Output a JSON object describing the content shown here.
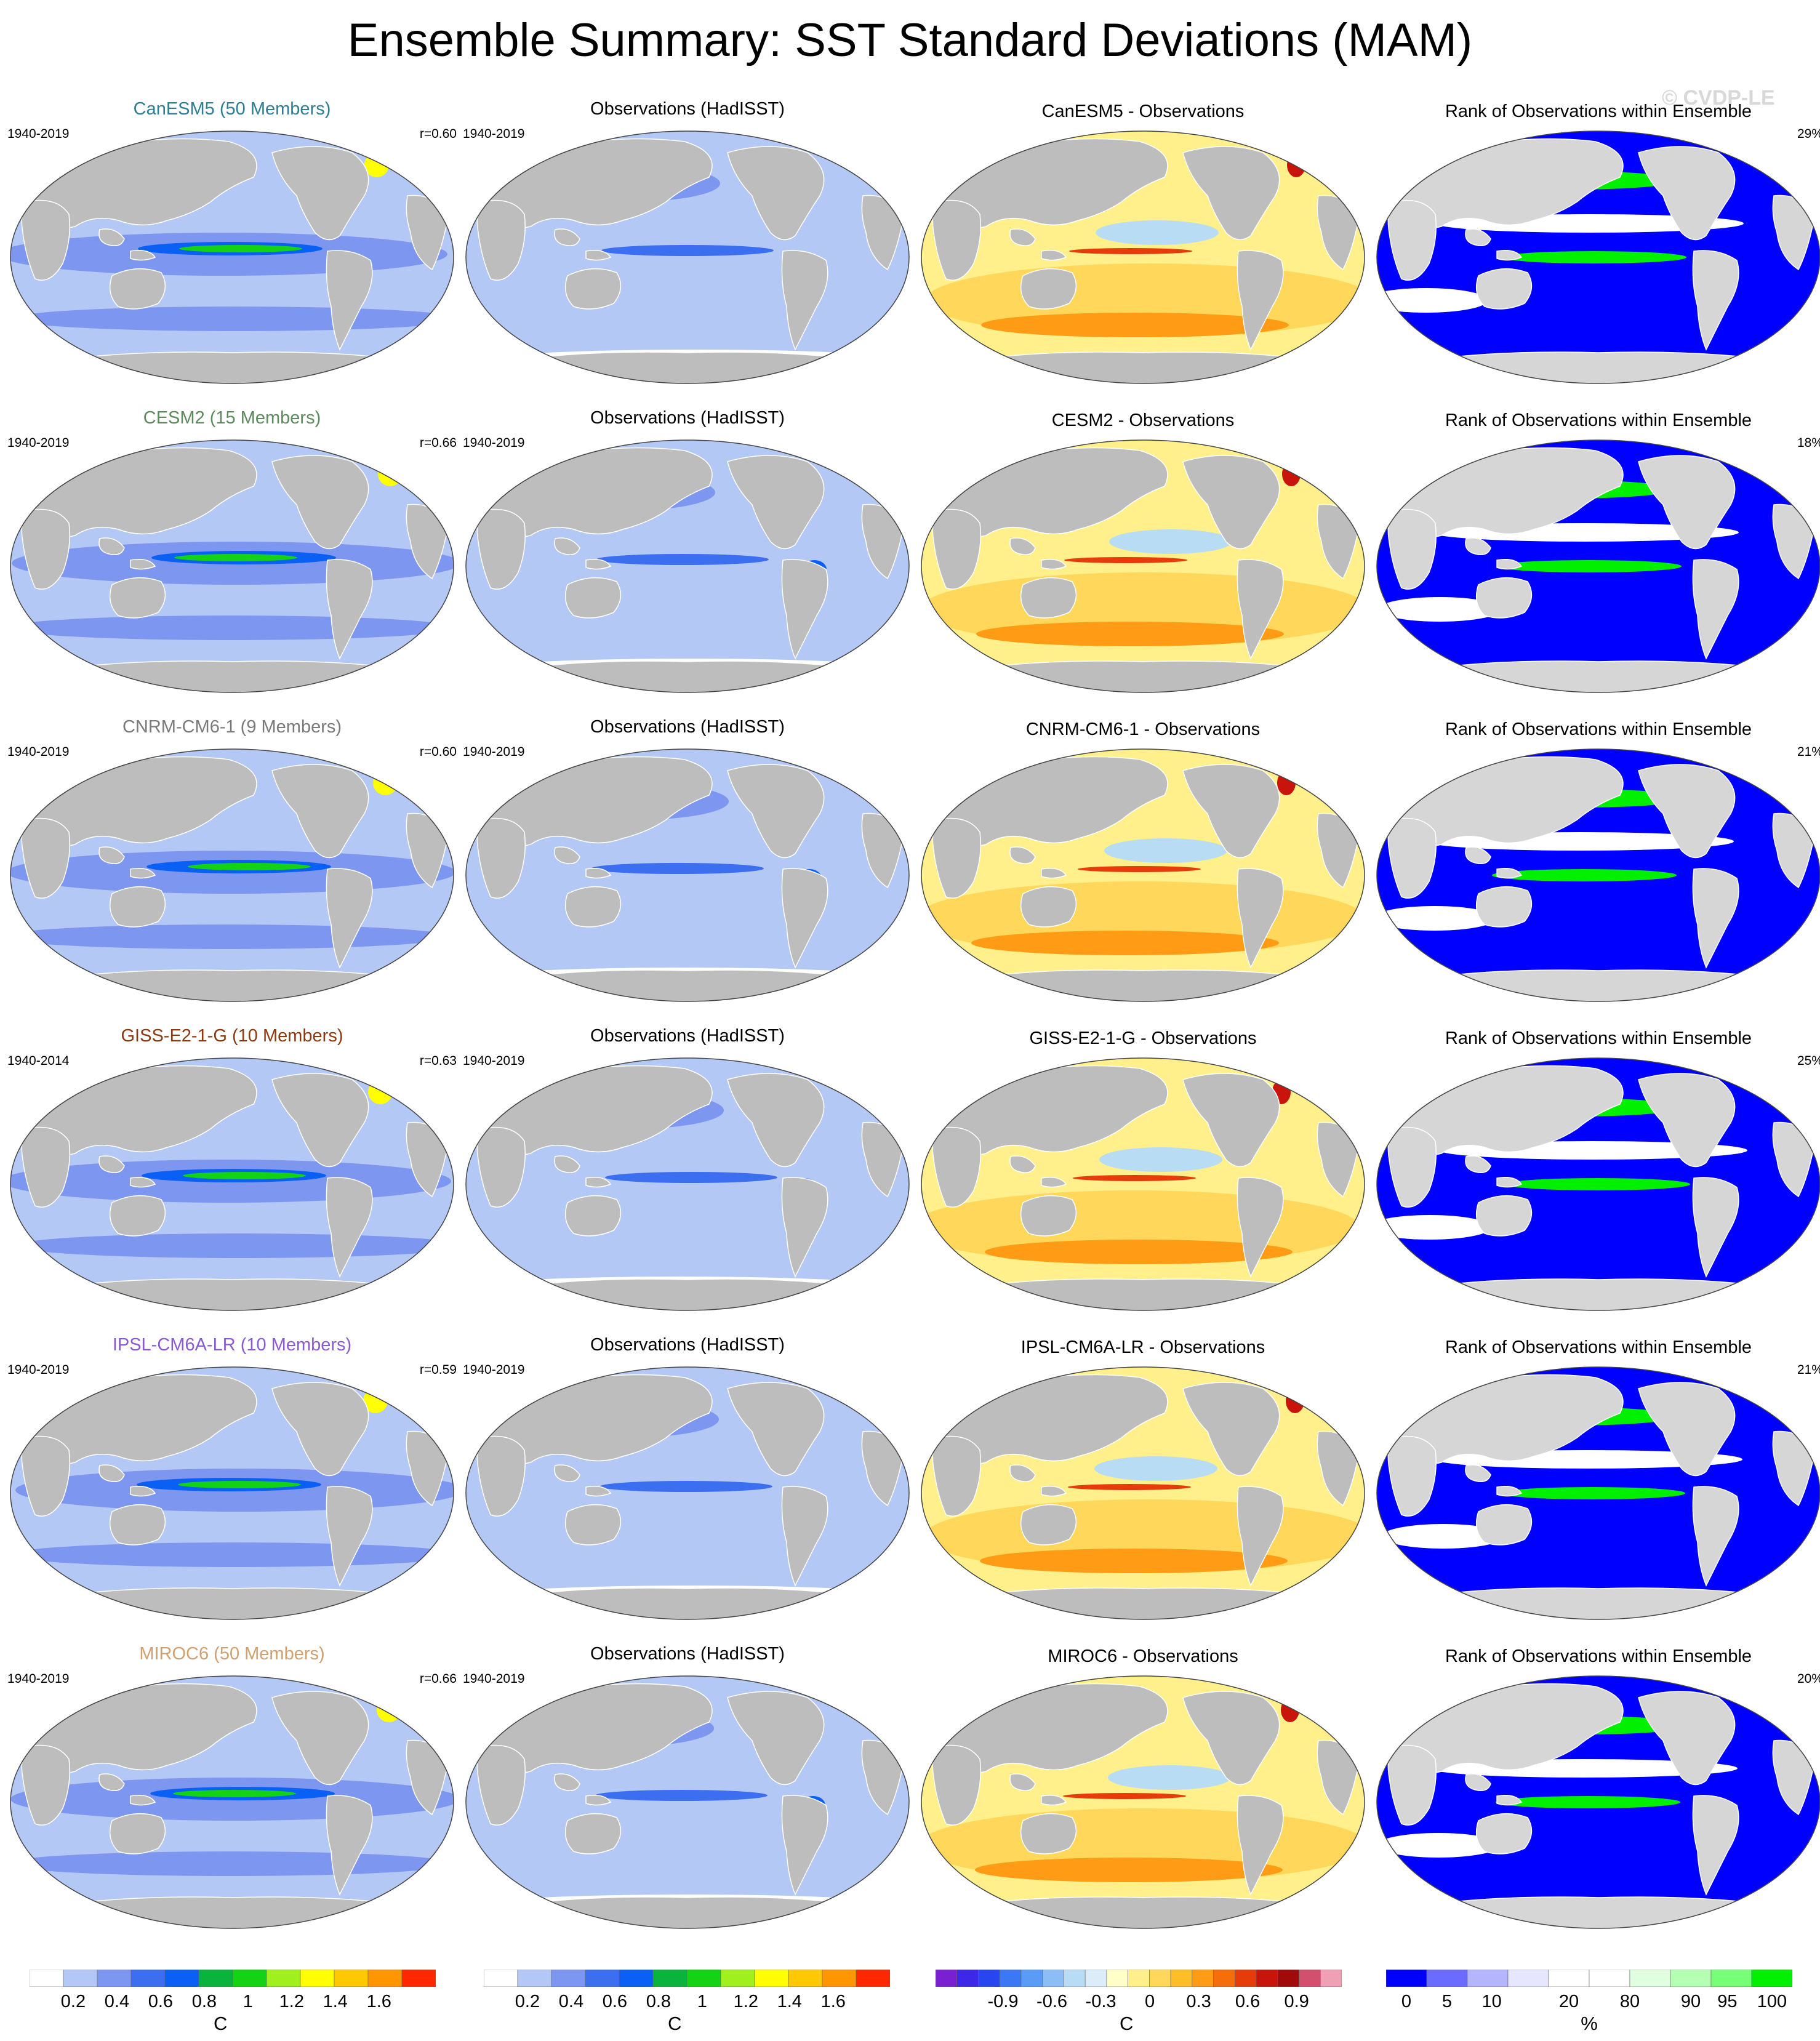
{
  "title": "Ensemble Summary: SST Standard Deviations (MAM)",
  "watermark": "© CVDP-LE",
  "obs_title": "Observations (HadISST)",
  "rank_title": "Rank of Observations within Ensemble",
  "rows": [
    {
      "model": "CanESM5 (50 Members)",
      "diff_title": "CanESM5 - Observations",
      "model_period": "1940-2019",
      "obs_period": "1940-2019",
      "r": "r=0.60",
      "rank_pct": "29%",
      "title_color": "#2e7d92"
    },
    {
      "model": "CESM2 (15 Members)",
      "diff_title": "CESM2 - Observations",
      "model_period": "1940-2019",
      "obs_period": "1940-2019",
      "r": "r=0.66",
      "rank_pct": "18%",
      "title_color": "#5c8a5c"
    },
    {
      "model": "CNRM-CM6-1 (9 Members)",
      "diff_title": "CNRM-CM6-1 - Observations",
      "model_period": "1940-2019",
      "obs_period": "1940-2019",
      "r": "r=0.60",
      "rank_pct": "21%",
      "title_color": "#7a7a7a"
    },
    {
      "model": "GISS-E2-1-G (10 Members)",
      "diff_title": "GISS-E2-1-G - Observations",
      "model_period": "1940-2014",
      "obs_period": "1940-2019",
      "r": "r=0.63",
      "rank_pct": "25%",
      "title_color": "#8b3a0f"
    },
    {
      "model": "IPSL-CM6A-LR (10 Members)",
      "diff_title": "IPSL-CM6A-LR - Observations",
      "model_period": "1940-2019",
      "obs_period": "1940-2019",
      "r": "r=0.59",
      "rank_pct": "21%",
      "title_color": "#8a5ad2"
    },
    {
      "model": "MIROC6 (50 Members)",
      "diff_title": "MIROC6 - Observations",
      "model_period": "1940-2019",
      "obs_period": "1940-2019",
      "r": "r=0.66",
      "rank_pct": "20%",
      "title_color": "#d0a070"
    }
  ],
  "colorbars": [
    {
      "unit": "C",
      "colors": [
        "#ffffff",
        "#b4c8f5",
        "#7d96f0",
        "#3c6ef0",
        "#0a5ff5",
        "#0ab43c",
        "#14d214",
        "#a0f01e",
        "#ffff00",
        "#ffc800",
        "#ff9600",
        "#ff2800"
      ],
      "ticks": [
        "0.2",
        "0.4",
        "0.6",
        "0.8",
        "1",
        "1.2",
        "1.4",
        "1.6"
      ]
    },
    {
      "unit": "C",
      "colors": [
        "#ffffff",
        "#b4c8f5",
        "#7d96f0",
        "#3c6ef0",
        "#0a5ff5",
        "#0ab43c",
        "#14d214",
        "#a0f01e",
        "#ffff00",
        "#ffc800",
        "#ff9600",
        "#ff2800"
      ],
      "ticks": [
        "0.2",
        "0.4",
        "0.6",
        "0.8",
        "1",
        "1.2",
        "1.4",
        "1.6"
      ]
    },
    {
      "unit": "C",
      "colors": [
        "#7820d2",
        "#3c28e6",
        "#2846f0",
        "#3c78f5",
        "#5a9bf5",
        "#8cbef5",
        "#b9dcf5",
        "#dcecf8",
        "#ffffc8",
        "#fff08c",
        "#ffd75a",
        "#ffbe28",
        "#ff9b14",
        "#f56e0a",
        "#e63c0a",
        "#c8140a",
        "#a00a0a",
        "#d2506e",
        "#f0a0b4"
      ],
      "ticks": [
        "-0.9",
        "-0.6",
        "-0.3",
        "0",
        "0.3",
        "0.6",
        "0.9"
      ]
    },
    {
      "unit": "%",
      "colors": [
        "#0000ff",
        "#6b6bff",
        "#b4b4ff",
        "#e6e6ff",
        "#ffffff",
        "#ffffff",
        "#e0ffe0",
        "#b4ffb4",
        "#78ff78",
        "#00f000"
      ],
      "ticks": [
        "0",
        "5",
        "10",
        "20",
        "80",
        "90",
        "95",
        "100"
      ]
    }
  ]
}
